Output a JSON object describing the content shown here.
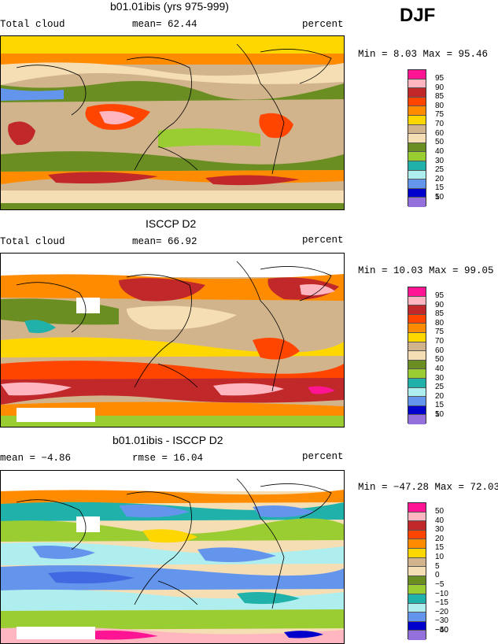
{
  "season": "DJF",
  "units_label": "percent",
  "panels": [
    {
      "id": "model",
      "title": "b01.01ibis (yrs 975-999)",
      "left_label": "Total cloud",
      "mid_label": "mean=  62.44",
      "minmax": "Min =    8.03 Max =  95.46",
      "legend_labels": [
        "95",
        "90",
        "85",
        "80",
        "75",
        "70",
        "60",
        "50",
        "40",
        "30",
        "25",
        "20",
        "15",
        "10",
        "5"
      ]
    },
    {
      "id": "obs",
      "title": "ISCCP D2",
      "left_label": "Total cloud",
      "mid_label": "mean=  66.92",
      "minmax": "Min =  10.03 Max =  99.05",
      "legend_labels": [
        "95",
        "90",
        "85",
        "80",
        "75",
        "70",
        "60",
        "50",
        "40",
        "30",
        "25",
        "20",
        "15",
        "10",
        "5"
      ]
    },
    {
      "id": "diff",
      "title": "b01.01ibis - ISCCP D2",
      "left_label": "mean =  −4.86",
      "mid_label": "rmse =  16.04",
      "minmax": "Min = −47.28 Max =  72.03",
      "legend_labels": [
        "50",
        "40",
        "30",
        "20",
        "15",
        "10",
        "5",
        "0",
        "−5",
        "−10",
        "−15",
        "−20",
        "−30",
        "−40",
        "−50"
      ]
    }
  ],
  "colors": {
    "scale": [
      "#ff1493",
      "#ffb6c1",
      "#c0282a",
      "#ff4500",
      "#ff8c00",
      "#ffd700",
      "#f5deb3",
      "#d2b48c",
      "#6b8e23",
      "#9acd32",
      "#20b2aa",
      "#afeeee",
      "#6495ed",
      "#4169e1",
      "#0000cd",
      "#9370db"
    ]
  }
}
